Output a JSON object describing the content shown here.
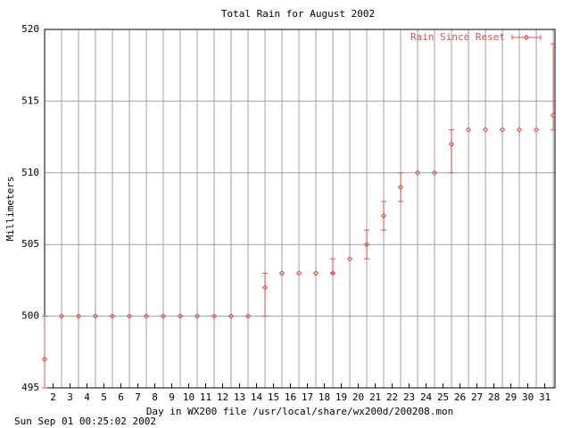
{
  "chart_data": {
    "type": "errorbar-points",
    "title": "Total Rain for August 2002",
    "x_label": "Day in WX200 file /usr/local/share/wx200d/200208.mon",
    "y_label": "Millimeters",
    "timestamp": "Sun Sep 01 00:25:02 2002",
    "color": "#e05050",
    "grid": true,
    "legend_position": "top-right",
    "series": [
      {
        "name": "Rain Since Reset",
        "color": "#e05050",
        "x": [
          1,
          2,
          3,
          4,
          5,
          6,
          7,
          8,
          9,
          10,
          11,
          12,
          13,
          14,
          15,
          16,
          17,
          18,
          19,
          20,
          21,
          22,
          23,
          24,
          25,
          26,
          27,
          28,
          29,
          30,
          31
        ],
        "values": [
          497,
          500,
          500,
          500,
          500,
          500,
          500,
          500,
          500,
          500,
          500,
          500,
          500,
          502,
          503,
          503,
          503,
          503,
          504,
          505,
          507,
          509,
          510,
          510,
          512,
          513,
          513,
          513,
          513,
          513,
          514
        ],
        "err_low": [
          495,
          null,
          null,
          null,
          null,
          null,
          null,
          null,
          null,
          null,
          null,
          null,
          null,
          500,
          null,
          null,
          null,
          503,
          null,
          504,
          506,
          508,
          null,
          null,
          510,
          null,
          null,
          null,
          null,
          null,
          513
        ],
        "err_high": [
          500,
          null,
          null,
          null,
          null,
          null,
          null,
          null,
          null,
          null,
          null,
          null,
          null,
          503,
          null,
          null,
          null,
          504,
          null,
          506,
          508,
          510,
          null,
          null,
          513,
          null,
          null,
          null,
          null,
          null,
          519
        ]
      }
    ],
    "xlim": [
      1,
      31.1
    ],
    "ylim": [
      495,
      520
    ],
    "yticks": [
      495,
      500,
      505,
      510,
      515,
      520
    ],
    "xticks": [
      {
        "value": 1.5,
        "label": "2"
      },
      {
        "value": 2.5,
        "label": "3"
      },
      {
        "value": 3.5,
        "label": "4"
      },
      {
        "value": 4.5,
        "label": "5"
      },
      {
        "value": 5.5,
        "label": "6"
      },
      {
        "value": 6.5,
        "label": "7"
      },
      {
        "value": 7.5,
        "label": "8"
      },
      {
        "value": 8.5,
        "label": "9"
      },
      {
        "value": 9.5,
        "label": "10"
      },
      {
        "value": 10.5,
        "label": "11"
      },
      {
        "value": 11.5,
        "label": "12"
      },
      {
        "value": 12.5,
        "label": "13"
      },
      {
        "value": 13.5,
        "label": "14"
      },
      {
        "value": 14.5,
        "label": "15"
      },
      {
        "value": 15.5,
        "label": "16"
      },
      {
        "value": 16.5,
        "label": "17"
      },
      {
        "value": 17.5,
        "label": "18"
      },
      {
        "value": 18.5,
        "label": "19"
      },
      {
        "value": 19.5,
        "label": "20"
      },
      {
        "value": 20.5,
        "label": "21"
      },
      {
        "value": 21.5,
        "label": "22"
      },
      {
        "value": 22.5,
        "label": "23"
      },
      {
        "value": 23.5,
        "label": "24"
      },
      {
        "value": 24.5,
        "label": "25"
      },
      {
        "value": 25.5,
        "label": "26"
      },
      {
        "value": 26.5,
        "label": "27"
      },
      {
        "value": 27.5,
        "label": "28"
      },
      {
        "value": 28.5,
        "label": "29"
      },
      {
        "value": 29.5,
        "label": "30"
      },
      {
        "value": 30.5,
        "label": "31"
      }
    ]
  }
}
